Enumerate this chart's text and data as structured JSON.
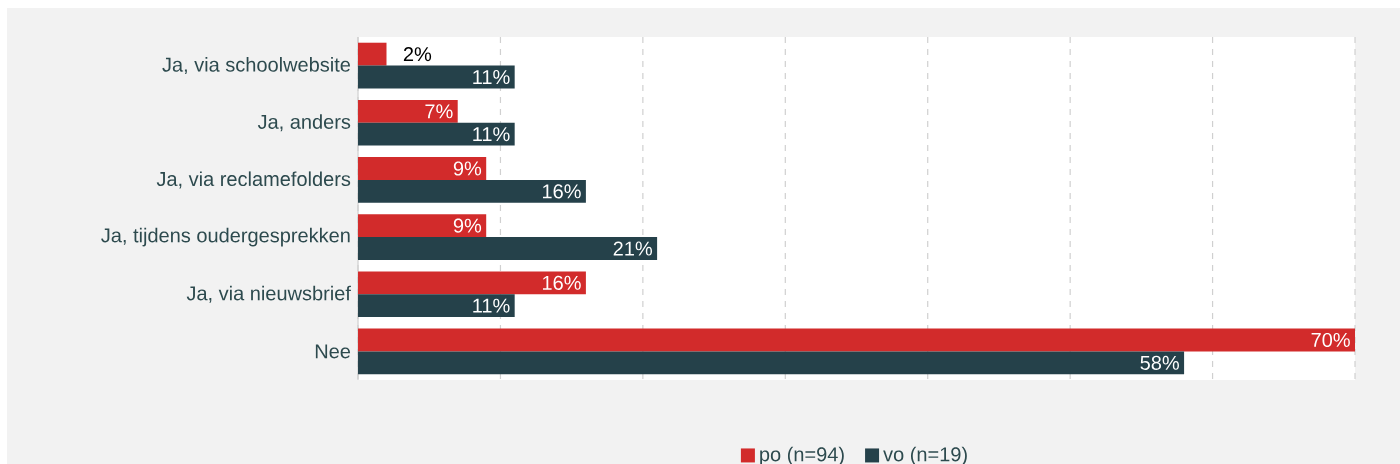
{
  "chart_data": {
    "type": "bar",
    "orientation": "horizontal",
    "categories": [
      "Ja, via schoolwebsite",
      "Ja, anders",
      "Ja, via reclamefolders",
      "Ja, tijdens oudergesprekken",
      "Ja, via nieuwsbrief",
      "Nee"
    ],
    "series": [
      {
        "name": "po (n=94)",
        "color": "#d22b2b",
        "values": [
          2,
          7,
          9,
          9,
          16,
          70
        ],
        "value_labels": [
          "2%",
          "7%",
          "9%",
          "9%",
          "16%",
          "70%"
        ]
      },
      {
        "name": "vo (n=19)",
        "color": "#25414a",
        "values": [
          11,
          11,
          16,
          21,
          11,
          58
        ],
        "value_labels": [
          "11%",
          "11%",
          "16%",
          "21%",
          "11%",
          "58%"
        ]
      }
    ],
    "xlim": [
      0,
      70
    ],
    "xticks": [
      {
        "value": 0,
        "label": null
      },
      {
        "value": 10,
        "label": null
      },
      {
        "value": 20,
        "label": null
      },
      {
        "value": 30,
        "label": null
      },
      {
        "value": 40,
        "label": null
      },
      {
        "value": 50,
        "label": null
      },
      {
        "value": 60,
        "label": null
      },
      {
        "value": 70,
        "label": null
      }
    ],
    "tick_labels": "y",
    "grid": "x",
    "legend": "bottom"
  }
}
